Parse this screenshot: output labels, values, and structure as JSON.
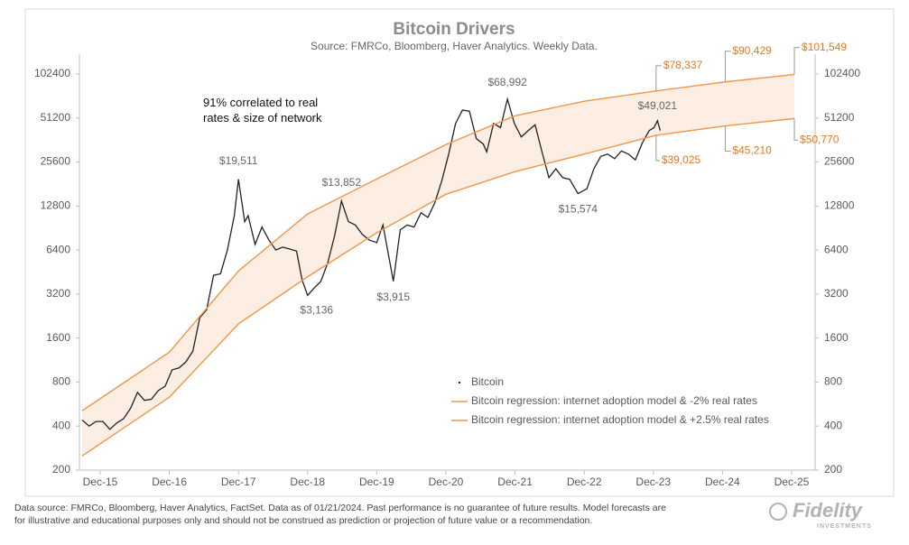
{
  "chart_data": {
    "type": "line",
    "title": "Bitcoin Drivers",
    "subtitle": "Source: FMRCo, Bloomberg, Haver Analytics. Weekly Data.",
    "note": "91% correlated to real rates & size of network",
    "log_scale": true,
    "xlim": [
      2015.66,
      2026.3
    ],
    "xticks": [
      {
        "value": 2015.96,
        "label": "Dec-15"
      },
      {
        "value": 2016.96,
        "label": "Dec-16"
      },
      {
        "value": 2017.96,
        "label": "Dec-17"
      },
      {
        "value": 2018.96,
        "label": "Dec-18"
      },
      {
        "value": 2019.96,
        "label": "Dec-19"
      },
      {
        "value": 2020.96,
        "label": "Dec-20"
      },
      {
        "value": 2021.96,
        "label": "Dec-21"
      },
      {
        "value": 2022.96,
        "label": "Dec-22"
      },
      {
        "value": 2023.96,
        "label": "Dec-23"
      },
      {
        "value": 2024.96,
        "label": "Dec-24"
      },
      {
        "value": 2025.96,
        "label": "Dec-25"
      }
    ],
    "ylim": [
      200,
      140000
    ],
    "yticks": [
      200,
      400,
      800,
      1600,
      3200,
      6400,
      12800,
      25600,
      51200,
      102400
    ],
    "series": [
      {
        "name": "Bitcoin",
        "color": "#222222",
        "x": [
          2015.7,
          2015.8,
          2015.9,
          2016.0,
          2016.1,
          2016.2,
          2016.3,
          2016.4,
          2016.5,
          2016.6,
          2016.7,
          2016.8,
          2016.9,
          2017.0,
          2017.1,
          2017.2,
          2017.3,
          2017.4,
          2017.5,
          2017.6,
          2017.7,
          2017.8,
          2017.9,
          2017.96,
          2018.05,
          2018.1,
          2018.2,
          2018.3,
          2018.4,
          2018.5,
          2018.6,
          2018.7,
          2018.8,
          2018.88,
          2018.96,
          2019.05,
          2019.15,
          2019.25,
          2019.35,
          2019.45,
          2019.55,
          2019.65,
          2019.75,
          2019.85,
          2019.96,
          2020.05,
          2020.2,
          2020.3,
          2020.4,
          2020.5,
          2020.6,
          2020.7,
          2020.8,
          2020.9,
          2021.0,
          2021.1,
          2021.2,
          2021.3,
          2021.4,
          2021.5,
          2021.55,
          2021.65,
          2021.75,
          2021.85,
          2021.95,
          2022.05,
          2022.15,
          2022.25,
          2022.35,
          2022.45,
          2022.55,
          2022.65,
          2022.75,
          2022.87,
          2023.0,
          2023.1,
          2023.2,
          2023.3,
          2023.4,
          2023.5,
          2023.6,
          2023.7,
          2023.8,
          2023.9,
          2023.97,
          2024.02,
          2024.06
        ],
        "values": [
          440,
          400,
          430,
          430,
          380,
          420,
          450,
          530,
          680,
          600,
          610,
          700,
          750,
          970,
          1000,
          1100,
          1300,
          2200,
          2500,
          4300,
          4400,
          6400,
          11000,
          19511,
          10000,
          11000,
          7000,
          9200,
          7500,
          6400,
          6700,
          6500,
          6300,
          4000,
          3136,
          3500,
          3900,
          5200,
          8000,
          13852,
          10000,
          9500,
          8200,
          7500,
          7200,
          9500,
          3915,
          8800,
          9500,
          9200,
          11500,
          10700,
          13500,
          19000,
          29000,
          47000,
          58000,
          57000,
          37000,
          34000,
          30000,
          47000,
          44000,
          68992,
          47000,
          38000,
          42000,
          46000,
          30000,
          20000,
          23000,
          20000,
          19500,
          15574,
          16800,
          23000,
          28000,
          29000,
          27000,
          30500,
          29000,
          26500,
          34500,
          42000,
          44000,
          49021,
          42000
        ]
      },
      {
        "name": "Bitcoin regression: internet adoption model & -2% real rates",
        "color": "#f0964a",
        "x": [
          2015.7,
          2016.96,
          2017.96,
          2018.96,
          2019.96,
          2020.96,
          2021.96,
          2022.96,
          2024.0,
          2025.0,
          2026.0
        ],
        "values": [
          510,
          1280,
          4600,
          11300,
          19600,
          33700,
          53000,
          66700,
          78337,
          90429,
          101549
        ]
      },
      {
        "name": "Bitcoin regression: internet adoption model & +2.5% real rates",
        "color": "#f0964a",
        "x": [
          2015.7,
          2016.96,
          2017.96,
          2018.96,
          2019.96,
          2020.96,
          2021.96,
          2022.96,
          2024.0,
          2025.0,
          2026.0
        ],
        "values": [
          250,
          630,
          2000,
          4200,
          8400,
          15400,
          22000,
          29000,
          39025,
          45210,
          50770
        ]
      }
    ],
    "annotations": [
      {
        "label": "$19,511",
        "x": 2017.96,
        "value": 19511,
        "color": "#666666"
      },
      {
        "label": "$3,136",
        "x": 2018.96,
        "value": 3136,
        "color": "#666666"
      },
      {
        "label": "$13,852",
        "x": 2019.45,
        "value": 13852,
        "color": "#666666"
      },
      {
        "label": "$3,915",
        "x": 2020.2,
        "value": 3915,
        "color": "#666666"
      },
      {
        "label": "$68,992",
        "x": 2021.85,
        "value": 68992,
        "color": "#666666"
      },
      {
        "label": "$15,574",
        "x": 2022.87,
        "value": 15574,
        "color": "#666666"
      },
      {
        "label": "$49,021",
        "x": 2024.02,
        "value": 49021,
        "color": "#666666"
      },
      {
        "label": "$78,337",
        "x": 2024.0,
        "value": 78337,
        "color": "#e8781e"
      },
      {
        "label": "$90,429",
        "x": 2025.0,
        "value": 90429,
        "color": "#e8781e"
      },
      {
        "label": "$101,549",
        "x": 2026.0,
        "value": 101549,
        "color": "#e8781e"
      },
      {
        "label": "$39,025",
        "x": 2024.0,
        "value": 39025,
        "color": "#e8781e"
      },
      {
        "label": "$45,210",
        "x": 2025.0,
        "value": 45210,
        "color": "#e8781e"
      },
      {
        "label": "$50,770",
        "x": 2026.0,
        "value": 50770,
        "color": "#e8781e"
      }
    ],
    "band_color": "#fdeee3",
    "legend": "lower right"
  },
  "footer": [
    "Data source: FMRCo, Bloomberg, Haver Analytics, FactSet. Data as of 01/21/2024. Past performance is no guarantee of future results. Model forecasts are",
    "for illustrative and educational purposes only and should not be construed as prediction or projection of future value or a recommendation."
  ],
  "logo": {
    "name": "Fidelity",
    "tagline": "INVESTMENTS"
  }
}
